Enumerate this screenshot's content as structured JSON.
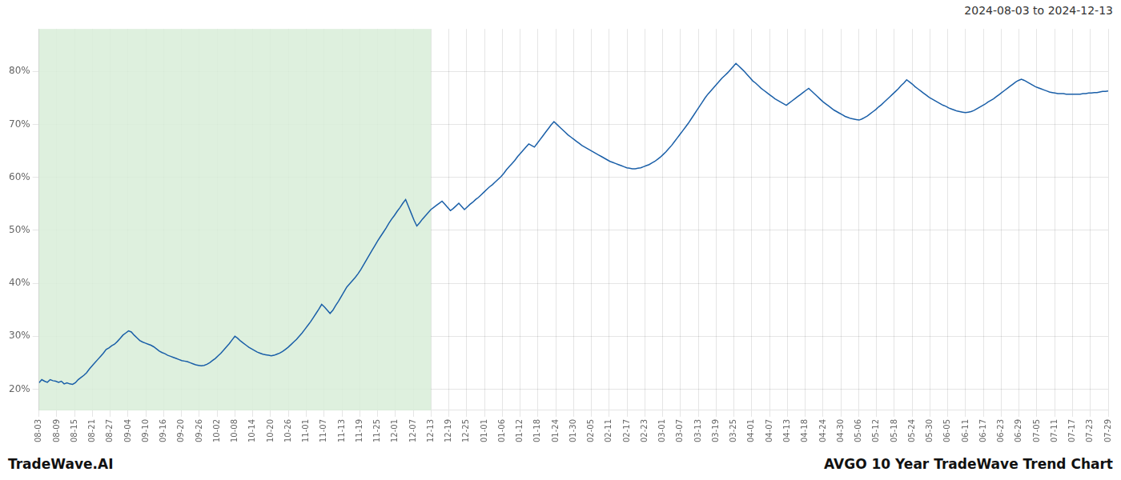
{
  "chart_data": {
    "type": "line",
    "title": "AVGO 10 Year TradeWave Trend Chart",
    "subtitle": "2024-08-03 to 2024-12-13",
    "annotations": [
      "TradeWave.AI"
    ],
    "color": "#1a5fa8",
    "grid": true,
    "shaded_range": {
      "x": [
        0,
        22
      ],
      "color": "#d8edd8"
    },
    "xlim": [
      0,
      60
    ],
    "xticks": [
      {
        "value": 0,
        "label": "08-03"
      },
      {
        "value": 1,
        "label": "08-09"
      },
      {
        "value": 2,
        "label": "08-15"
      },
      {
        "value": 3,
        "label": "08-21"
      },
      {
        "value": 4,
        "label": "08-27"
      },
      {
        "value": 5,
        "label": "09-04"
      },
      {
        "value": 6,
        "label": "09-10"
      },
      {
        "value": 7,
        "label": "09-16"
      },
      {
        "value": 8,
        "label": "09-20"
      },
      {
        "value": 9,
        "label": "09-26"
      },
      {
        "value": 10,
        "label": "10-02"
      },
      {
        "value": 11,
        "label": "10-08"
      },
      {
        "value": 12,
        "label": "10-14"
      },
      {
        "value": 13,
        "label": "10-20"
      },
      {
        "value": 14,
        "label": "10-26"
      },
      {
        "value": 15,
        "label": "11-01"
      },
      {
        "value": 16,
        "label": "11-07"
      },
      {
        "value": 17,
        "label": "11-13"
      },
      {
        "value": 18,
        "label": "11-19"
      },
      {
        "value": 19,
        "label": "11-25"
      },
      {
        "value": 20,
        "label": "12-01"
      },
      {
        "value": 21,
        "label": "12-07"
      },
      {
        "value": 22,
        "label": "12-13"
      },
      {
        "value": 23,
        "label": "12-19"
      },
      {
        "value": 24,
        "label": "12-25"
      },
      {
        "value": 25,
        "label": "01-01"
      },
      {
        "value": 26,
        "label": "01-06"
      },
      {
        "value": 27,
        "label": "01-12"
      },
      {
        "value": 28,
        "label": "01-18"
      },
      {
        "value": 29,
        "label": "01-24"
      },
      {
        "value": 30,
        "label": "01-30"
      },
      {
        "value": 31,
        "label": "02-05"
      },
      {
        "value": 32,
        "label": "02-11"
      },
      {
        "value": 33,
        "label": "02-17"
      },
      {
        "value": 34,
        "label": "02-23"
      },
      {
        "value": 35,
        "label": "03-01"
      },
      {
        "value": 36,
        "label": "03-07"
      },
      {
        "value": 37,
        "label": "03-13"
      },
      {
        "value": 38,
        "label": "03-19"
      },
      {
        "value": 39,
        "label": "03-25"
      },
      {
        "value": 40,
        "label": "04-01"
      },
      {
        "value": 41,
        "label": "04-07"
      },
      {
        "value": 42,
        "label": "04-13"
      },
      {
        "value": 43,
        "label": "04-18"
      },
      {
        "value": 44,
        "label": "04-24"
      },
      {
        "value": 45,
        "label": "04-30"
      },
      {
        "value": 46,
        "label": "05-06"
      },
      {
        "value": 47,
        "label": "05-12"
      },
      {
        "value": 48,
        "label": "05-18"
      },
      {
        "value": 49,
        "label": "05-24"
      },
      {
        "value": 50,
        "label": "05-30"
      },
      {
        "value": 51,
        "label": "06-05"
      },
      {
        "value": 52,
        "label": "06-11"
      },
      {
        "value": 53,
        "label": "06-17"
      },
      {
        "value": 54,
        "label": "06-23"
      },
      {
        "value": 55,
        "label": "06-29"
      },
      {
        "value": 56,
        "label": "07-05"
      },
      {
        "value": 57,
        "label": "07-11"
      },
      {
        "value": 58,
        "label": "07-17"
      },
      {
        "value": 59,
        "label": "07-23"
      },
      {
        "value": 60,
        "label": "07-29"
      }
    ],
    "ylim": [
      0.16,
      0.88
    ],
    "yticks": [
      {
        "value": 0.2,
        "label": "20%"
      },
      {
        "value": 0.3,
        "label": "30%"
      },
      {
        "value": 0.4,
        "label": "40%"
      },
      {
        "value": 0.5,
        "label": "50%"
      },
      {
        "value": 0.6,
        "label": "60%"
      },
      {
        "value": 0.7,
        "label": "70%"
      },
      {
        "value": 0.8,
        "label": "80%"
      }
    ],
    "values": [
      0.212,
      0.218,
      0.215,
      0.213,
      0.218,
      0.216,
      0.215,
      0.213,
      0.215,
      0.21,
      0.212,
      0.21,
      0.209,
      0.212,
      0.218,
      0.222,
      0.226,
      0.231,
      0.238,
      0.244,
      0.25,
      0.256,
      0.262,
      0.268,
      0.275,
      0.278,
      0.282,
      0.285,
      0.29,
      0.296,
      0.302,
      0.306,
      0.31,
      0.308,
      0.302,
      0.297,
      0.292,
      0.289,
      0.287,
      0.285,
      0.283,
      0.28,
      0.276,
      0.272,
      0.269,
      0.267,
      0.264,
      0.262,
      0.26,
      0.258,
      0.256,
      0.254,
      0.253,
      0.252,
      0.25,
      0.248,
      0.246,
      0.245,
      0.244,
      0.245,
      0.247,
      0.25,
      0.254,
      0.258,
      0.263,
      0.268,
      0.274,
      0.28,
      0.286,
      0.293,
      0.3,
      0.296,
      0.291,
      0.287,
      0.283,
      0.279,
      0.276,
      0.273,
      0.27,
      0.268,
      0.266,
      0.265,
      0.264,
      0.263,
      0.264,
      0.266,
      0.268,
      0.271,
      0.275,
      0.279,
      0.284,
      0.289,
      0.294,
      0.3,
      0.306,
      0.313,
      0.32,
      0.327,
      0.335,
      0.343,
      0.351,
      0.36,
      0.355,
      0.349,
      0.343,
      0.349,
      0.358,
      0.366,
      0.375,
      0.384,
      0.393,
      0.399,
      0.405,
      0.411,
      0.418,
      0.426,
      0.435,
      0.444,
      0.453,
      0.462,
      0.471,
      0.48,
      0.488,
      0.496,
      0.504,
      0.513,
      0.521,
      0.528,
      0.536,
      0.543,
      0.551,
      0.558,
      0.545,
      0.532,
      0.519,
      0.508,
      0.514,
      0.521,
      0.527,
      0.533,
      0.539,
      0.543,
      0.547,
      0.551,
      0.555,
      0.549,
      0.543,
      0.537,
      0.541,
      0.546,
      0.551,
      0.545,
      0.539,
      0.544,
      0.549,
      0.553,
      0.558,
      0.562,
      0.567,
      0.572,
      0.577,
      0.582,
      0.586,
      0.591,
      0.596,
      0.601,
      0.607,
      0.614,
      0.62,
      0.626,
      0.632,
      0.639,
      0.645,
      0.651,
      0.657,
      0.663,
      0.66,
      0.657,
      0.664,
      0.671,
      0.678,
      0.685,
      0.692,
      0.699,
      0.705,
      0.7,
      0.695,
      0.69,
      0.685,
      0.68,
      0.676,
      0.672,
      0.668,
      0.664,
      0.66,
      0.657,
      0.654,
      0.651,
      0.648,
      0.645,
      0.642,
      0.639,
      0.636,
      0.633,
      0.63,
      0.628,
      0.626,
      0.624,
      0.622,
      0.62,
      0.618,
      0.617,
      0.616,
      0.616,
      0.617,
      0.618,
      0.62,
      0.622,
      0.624,
      0.627,
      0.63,
      0.634,
      0.638,
      0.643,
      0.648,
      0.654,
      0.66,
      0.667,
      0.674,
      0.681,
      0.688,
      0.695,
      0.702,
      0.71,
      0.718,
      0.726,
      0.734,
      0.742,
      0.75,
      0.757,
      0.763,
      0.769,
      0.775,
      0.781,
      0.787,
      0.792,
      0.797,
      0.803,
      0.809,
      0.815,
      0.81,
      0.805,
      0.8,
      0.794,
      0.788,
      0.782,
      0.778,
      0.773,
      0.768,
      0.764,
      0.76,
      0.756,
      0.752,
      0.748,
      0.745,
      0.742,
      0.739,
      0.736,
      0.74,
      0.744,
      0.748,
      0.752,
      0.756,
      0.76,
      0.764,
      0.768,
      0.763,
      0.758,
      0.753,
      0.748,
      0.743,
      0.739,
      0.735,
      0.731,
      0.727,
      0.724,
      0.721,
      0.718,
      0.715,
      0.713,
      0.711,
      0.71,
      0.709,
      0.708,
      0.71,
      0.713,
      0.716,
      0.72,
      0.724,
      0.728,
      0.733,
      0.737,
      0.742,
      0.747,
      0.752,
      0.757,
      0.762,
      0.767,
      0.773,
      0.778,
      0.784,
      0.78,
      0.776,
      0.771,
      0.767,
      0.763,
      0.759,
      0.755,
      0.751,
      0.748,
      0.745,
      0.742,
      0.739,
      0.736,
      0.734,
      0.731,
      0.729,
      0.727,
      0.725,
      0.724,
      0.723,
      0.722,
      0.723,
      0.724,
      0.726,
      0.729,
      0.732,
      0.735,
      0.738,
      0.742,
      0.745,
      0.748,
      0.752,
      0.756,
      0.76,
      0.764,
      0.768,
      0.772,
      0.776,
      0.78,
      0.783,
      0.785,
      0.783,
      0.78,
      0.777,
      0.774,
      0.771,
      0.769,
      0.767,
      0.765,
      0.763,
      0.761,
      0.76,
      0.759,
      0.758,
      0.758,
      0.758,
      0.757,
      0.757,
      0.757,
      0.757,
      0.757,
      0.757,
      0.758,
      0.758,
      0.759,
      0.759,
      0.76,
      0.76,
      0.761,
      0.762,
      0.762,
      0.763
    ]
  }
}
